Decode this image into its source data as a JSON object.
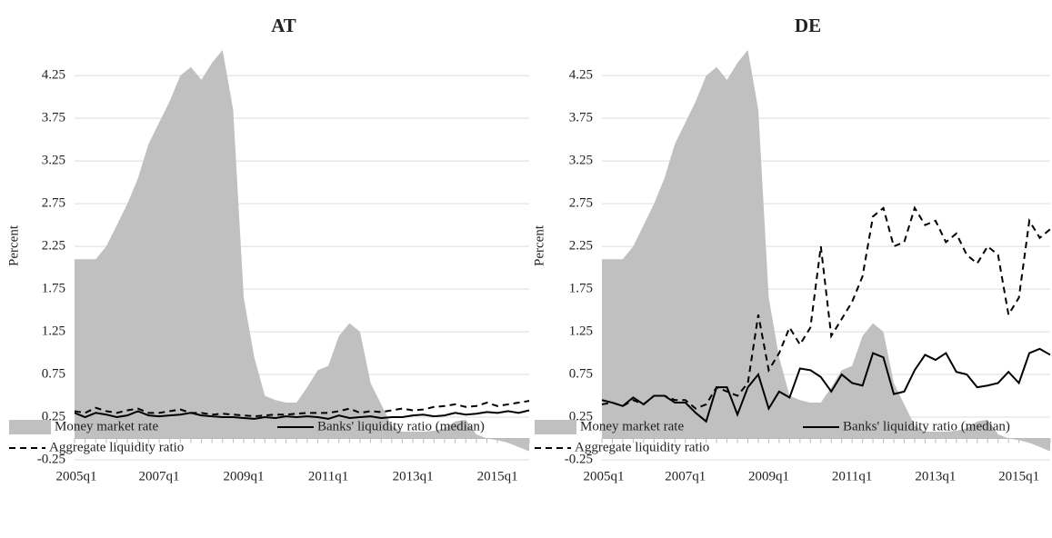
{
  "chart_data": [
    {
      "type": "line",
      "title": "AT",
      "y_label": "Percent",
      "categories": [
        "2005q1",
        null,
        null,
        null,
        null,
        null,
        null,
        null,
        "2007q1",
        null,
        null,
        null,
        null,
        null,
        null,
        null,
        "2009q1",
        null,
        null,
        null,
        null,
        null,
        null,
        null,
        "2011q1",
        null,
        null,
        null,
        null,
        null,
        null,
        null,
        "2013q1",
        null,
        null,
        null,
        null,
        null,
        null,
        null,
        "2015q1",
        null,
        null,
        null
      ],
      "ylim": [
        -0.25,
        4.55
      ],
      "yticks": [
        -0.25,
        0.25,
        0.75,
        1.25,
        1.75,
        2.25,
        2.75,
        3.25,
        3.75,
        4.25
      ],
      "grid": true,
      "series": [
        {
          "name": "Money market rate",
          "kind": "area",
          "color": "#c0c0c0",
          "values": [
            2.1,
            2.1,
            2.1,
            2.25,
            2.5,
            2.75,
            3.05,
            3.45,
            3.7,
            3.95,
            4.25,
            4.35,
            4.2,
            4.4,
            4.55,
            3.85,
            1.65,
            0.95,
            0.5,
            0.45,
            0.42,
            0.42,
            0.6,
            0.8,
            0.85,
            1.2,
            1.35,
            1.25,
            0.65,
            0.4,
            0.15,
            0.08,
            0.08,
            0.08,
            0.09,
            0.12,
            0.2,
            0.22,
            0.05,
            0.0,
            -0.02,
            -0.05,
            -0.1,
            -0.15
          ]
        },
        {
          "name": "Banks' liquidity ratio (median)",
          "kind": "line",
          "dash": "solid",
          "color": "#000000",
          "values": [
            0.3,
            0.25,
            0.3,
            0.28,
            0.25,
            0.27,
            0.32,
            0.27,
            0.26,
            0.27,
            0.28,
            0.3,
            0.27,
            0.26,
            0.25,
            0.25,
            0.24,
            0.23,
            0.25,
            0.24,
            0.26,
            0.25,
            0.26,
            0.25,
            0.23,
            0.27,
            0.24,
            0.25,
            0.26,
            0.24,
            0.25,
            0.25,
            0.27,
            0.28,
            0.26,
            0.27,
            0.3,
            0.28,
            0.29,
            0.31,
            0.3,
            0.32,
            0.3,
            0.33
          ]
        },
        {
          "name": "Aggregate liquidity ratio",
          "kind": "line",
          "dash": "dashed",
          "color": "#000000",
          "values": [
            0.32,
            0.3,
            0.36,
            0.32,
            0.3,
            0.33,
            0.35,
            0.3,
            0.3,
            0.32,
            0.34,
            0.3,
            0.3,
            0.28,
            0.29,
            0.28,
            0.27,
            0.26,
            0.27,
            0.28,
            0.28,
            0.29,
            0.3,
            0.3,
            0.3,
            0.32,
            0.35,
            0.3,
            0.32,
            0.31,
            0.33,
            0.35,
            0.33,
            0.34,
            0.37,
            0.38,
            0.4,
            0.37,
            0.38,
            0.42,
            0.38,
            0.4,
            0.42,
            0.44
          ]
        }
      ]
    },
    {
      "type": "line",
      "title": "DE",
      "y_label": "Percent",
      "categories": [
        "2005q1",
        null,
        null,
        null,
        null,
        null,
        null,
        null,
        "2007q1",
        null,
        null,
        null,
        null,
        null,
        null,
        null,
        "2009q1",
        null,
        null,
        null,
        null,
        null,
        null,
        null,
        "2011q1",
        null,
        null,
        null,
        null,
        null,
        null,
        null,
        "2013q1",
        null,
        null,
        null,
        null,
        null,
        null,
        null,
        "2015q1",
        null,
        null,
        null
      ],
      "ylim": [
        -0.25,
        4.55
      ],
      "yticks": [
        -0.25,
        0.25,
        0.75,
        1.25,
        1.75,
        2.25,
        2.75,
        3.25,
        3.75,
        4.25
      ],
      "grid": true,
      "series": [
        {
          "name": "Money market rate",
          "kind": "area",
          "color": "#c0c0c0",
          "values": [
            2.1,
            2.1,
            2.1,
            2.25,
            2.5,
            2.75,
            3.05,
            3.45,
            3.7,
            3.95,
            4.25,
            4.35,
            4.2,
            4.4,
            4.55,
            3.85,
            1.65,
            0.95,
            0.5,
            0.45,
            0.42,
            0.42,
            0.6,
            0.8,
            0.85,
            1.2,
            1.35,
            1.25,
            0.65,
            0.4,
            0.15,
            0.08,
            0.08,
            0.08,
            0.09,
            0.12,
            0.2,
            0.22,
            0.05,
            0.0,
            -0.02,
            -0.05,
            -0.1,
            -0.15
          ]
        },
        {
          "name": "Banks' liquidity ratio (median)",
          "kind": "line",
          "dash": "solid",
          "color": "#000000",
          "values": [
            0.45,
            0.42,
            0.38,
            0.48,
            0.4,
            0.5,
            0.5,
            0.42,
            0.42,
            0.3,
            0.2,
            0.6,
            0.6,
            0.28,
            0.6,
            0.75,
            0.35,
            0.55,
            0.48,
            0.82,
            0.8,
            0.72,
            0.55,
            0.75,
            0.65,
            0.62,
            1.0,
            0.95,
            0.52,
            0.55,
            0.8,
            0.98,
            0.92,
            1.0,
            0.78,
            0.75,
            0.6,
            0.62,
            0.65,
            0.78,
            0.65,
            1.0,
            1.05,
            0.98
          ]
        },
        {
          "name": "Aggregate liquidity ratio",
          "kind": "line",
          "dash": "dashed",
          "color": "#000000",
          "values": [
            0.4,
            0.42,
            0.38,
            0.45,
            0.4,
            0.5,
            0.5,
            0.45,
            0.45,
            0.35,
            0.4,
            0.6,
            0.55,
            0.5,
            0.65,
            1.45,
            0.8,
            1.0,
            1.3,
            1.1,
            1.3,
            2.25,
            1.2,
            1.4,
            1.6,
            1.9,
            2.6,
            2.7,
            2.25,
            2.3,
            2.7,
            2.5,
            2.55,
            2.3,
            2.4,
            2.15,
            2.05,
            2.25,
            2.15,
            1.45,
            1.65,
            2.55,
            2.35,
            2.45
          ]
        }
      ]
    }
  ]
}
